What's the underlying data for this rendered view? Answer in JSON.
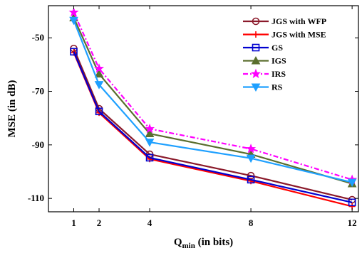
{
  "chart_data": {
    "type": "line",
    "title": "",
    "xlabel": {
      "main": "Q",
      "sub": "min",
      "suffix": " (in bits)"
    },
    "ylabel": "MSE (in dB)",
    "x": [
      1,
      2,
      4,
      8,
      12
    ],
    "xlim": [
      0,
      12.25
    ],
    "ylim": [
      -115,
      -38
    ],
    "xticks": [
      1,
      2,
      4,
      8,
      12
    ],
    "yticks": [
      -110,
      -90,
      -70,
      -50
    ],
    "grid": false,
    "legend_position": "top-right",
    "series": [
      {
        "name": "JGS with WFP",
        "color": "#8b1a2b",
        "marker": "circle",
        "dash": "solid",
        "values": [
          -54.0,
          -76.5,
          -93.5,
          -101.5,
          -110.5
        ]
      },
      {
        "name": "JGS with MSE",
        "color": "#ff0000",
        "marker": "plus",
        "dash": "solid",
        "values": [
          -55.5,
          -78.0,
          -95.3,
          -103.5,
          -113.0
        ]
      },
      {
        "name": "GS",
        "color": "#0000d0",
        "marker": "square",
        "dash": "solid",
        "values": [
          -55.2,
          -77.5,
          -94.8,
          -103.0,
          -111.5
        ]
      },
      {
        "name": "IGS",
        "color": "#5a6e2e",
        "marker": "triangle-up",
        "dash": "solid",
        "values": [
          -42.5,
          -63.5,
          -85.8,
          -93.5,
          -104.5
        ]
      },
      {
        "name": "IRS",
        "color": "#ff00ff",
        "marker": "star",
        "dash": "dashdot",
        "values": [
          -40.5,
          -61.5,
          -84.0,
          -91.5,
          -103.0
        ]
      },
      {
        "name": "RS",
        "color": "#1ea0ff",
        "marker": "triangle-down",
        "dash": "solid",
        "values": [
          -43.5,
          -67.5,
          -89.0,
          -95.0,
          -104.0
        ]
      }
    ]
  }
}
